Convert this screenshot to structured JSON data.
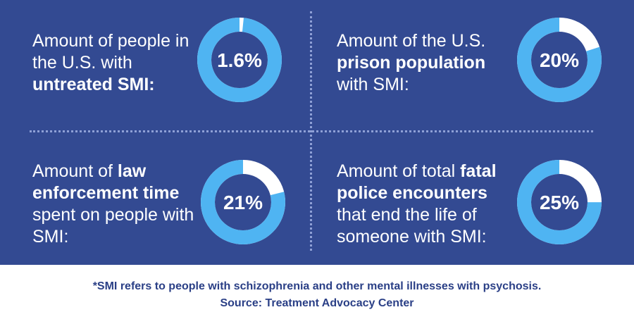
{
  "colors": {
    "background": "#334a92",
    "donut_fill": "#4fb4f2",
    "donut_rest": "#ffffff",
    "footer_text": "#2a3f86"
  },
  "chart_data": [
    {
      "type": "pie",
      "labels": [
        {
          "text": "Amount of people in the U.S. with ",
          "bold": false
        },
        {
          "text": "untreated SMI:",
          "bold": true
        }
      ],
      "value": 1.6,
      "value_label": "1.6%"
    },
    {
      "type": "pie",
      "labels": [
        {
          "text": "Amount of the U.S. ",
          "bold": false
        },
        {
          "text": "prison population",
          "bold": true
        },
        {
          "text": " with SMI:",
          "bold": false
        }
      ],
      "value": 20,
      "value_label": "20%"
    },
    {
      "type": "pie",
      "labels": [
        {
          "text": "Amount of ",
          "bold": false
        },
        {
          "text": "law enforcement time",
          "bold": true
        },
        {
          "text": " spent on people with SMI:",
          "bold": false
        }
      ],
      "value": 21,
      "value_label": "21%"
    },
    {
      "type": "pie",
      "labels": [
        {
          "text": "Amount of total ",
          "bold": false
        },
        {
          "text": "fatal police encounters",
          "bold": true
        },
        {
          "text": " that end the life of someone with SMI:",
          "bold": false
        }
      ],
      "value": 25,
      "value_label": "25%"
    }
  ],
  "footer": {
    "note": "*SMI refers to people with schizophrenia and other mental illnesses with psychosis.",
    "source": "Source: Treatment Advocacy Center"
  }
}
